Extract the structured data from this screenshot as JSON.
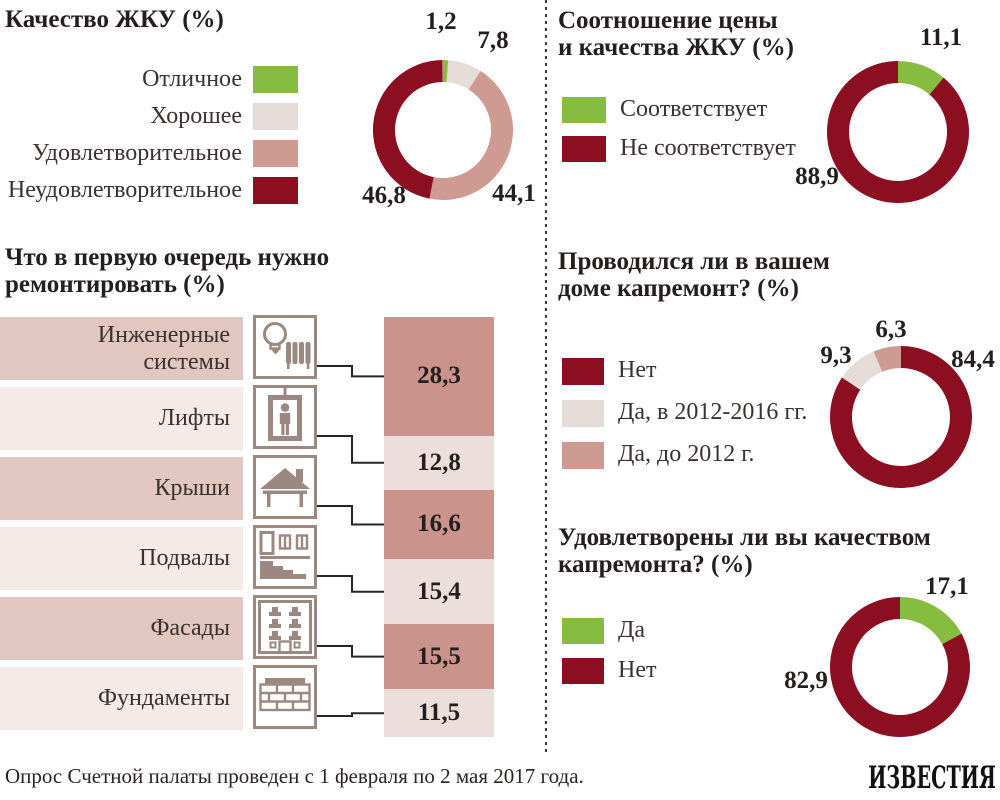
{
  "palette": {
    "green": "#86bd40",
    "dark_red": "#8c0e21",
    "pink": "#cf9a91",
    "beige": "#e5dbd7",
    "bar_pink": "#ca938b",
    "bar_light": "#ecdeda",
    "band_pink": "#e2c6c0",
    "band_light": "#f4ebe8",
    "icon": "#9b8880",
    "text": "#2a2422"
  },
  "footer": {
    "caption": "Опрос Счетной палаты проведен с 1 февраля по 2 мая 2017 года.",
    "logo": "ИЗВЕСТИЯ"
  },
  "chart_data": [
    {
      "id": "quality",
      "type": "donut",
      "title": "Качество ЖКУ (%)",
      "segments": [
        {
          "label": "Отличное",
          "value": 1.2,
          "display": "1,2",
          "color": "green"
        },
        {
          "label": "Хорошее",
          "value": 7.8,
          "display": "7,8",
          "color": "beige"
        },
        {
          "label": "Удовлетворительное",
          "value": 44.1,
          "display": "44,1",
          "color": "pink"
        },
        {
          "label": "Неудовлетворительное",
          "value": 46.8,
          "display": "46,8",
          "color": "dark_red"
        }
      ]
    },
    {
      "id": "price_quality",
      "type": "donut",
      "title": "Соотношение цены\nи качества ЖКУ (%)",
      "segments": [
        {
          "label": "Соответствует",
          "value": 11.1,
          "display": "11,1",
          "color": "green"
        },
        {
          "label": "Не соответствует",
          "value": 88.9,
          "display": "88,9",
          "color": "dark_red"
        }
      ]
    },
    {
      "id": "repairs",
      "type": "bar",
      "title": "Что в первую очередь нужно\nремонтировать (%)",
      "categories": [
        {
          "label": "Инженерные системы",
          "value": 28.3,
          "display": "28,3",
          "icon": "engineering-systems"
        },
        {
          "label": "Лифты",
          "value": 12.8,
          "display": "12,8",
          "icon": "elevator"
        },
        {
          "label": "Крыши",
          "value": 16.6,
          "display": "16,6",
          "icon": "roof"
        },
        {
          "label": "Подвалы",
          "value": 15.4,
          "display": "15,4",
          "icon": "basement"
        },
        {
          "label": "Фасады",
          "value": 15.5,
          "display": "15,5",
          "icon": "facade"
        },
        {
          "label": "Фундаменты",
          "value": 11.5,
          "display": "11,5",
          "icon": "foundation"
        }
      ]
    },
    {
      "id": "overhaul",
      "type": "donut",
      "title": "Проводился ли в вашем\nдоме капремонт? (%)",
      "segments": [
        {
          "label": "Нет",
          "value": 84.4,
          "display": "84,4",
          "color": "dark_red"
        },
        {
          "label": "Да, в 2012-2016 гг.",
          "value": 9.3,
          "display": "9,3",
          "color": "beige"
        },
        {
          "label": "Да, до 2012 г.",
          "value": 6.3,
          "display": "6,3",
          "color": "pink"
        }
      ]
    },
    {
      "id": "overhaul_quality",
      "type": "donut",
      "title": "Удовлетворены ли вы качеством\nкапремонта? (%)",
      "segments": [
        {
          "label": "Да",
          "value": 17.1,
          "display": "17,1",
          "color": "green"
        },
        {
          "label": "Нет",
          "value": 82.9,
          "display": "82,9",
          "color": "dark_red"
        }
      ]
    }
  ]
}
